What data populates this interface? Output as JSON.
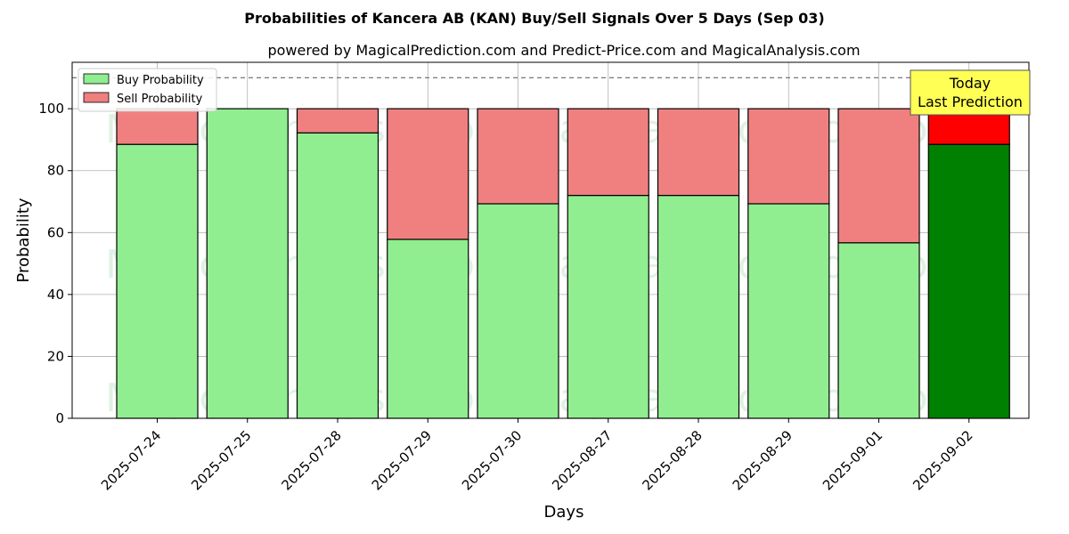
{
  "chart_data": {
    "type": "bar",
    "stacked": true,
    "title": "Probabilities of Kancera AB (KAN) Buy/Sell Signals Over 5 Days (Sep 03)",
    "subtitle": "powered by MagicalPrediction.com and Predict-Price.com and MagicalAnalysis.com",
    "xlabel": "Days",
    "ylabel": "Probability",
    "ylim": [
      0,
      115
    ],
    "yticks": [
      0,
      20,
      40,
      60,
      80,
      100
    ],
    "reference_line": 110,
    "grid": true,
    "legend_position": "top-left",
    "categories": [
      "2025-07-24",
      "2025-07-25",
      "2025-07-28",
      "2025-07-29",
      "2025-07-30",
      "2025-08-27",
      "2025-08-28",
      "2025-08-29",
      "2025-09-01",
      "2025-09-02"
    ],
    "series": [
      {
        "name": "Buy Probability",
        "values": [
          88.5,
          100,
          92.2,
          57.8,
          69.3,
          72,
          72,
          69.3,
          56.7,
          88.5
        ]
      },
      {
        "name": "Sell Probability",
        "values": [
          11.5,
          0,
          7.8,
          42.2,
          30.7,
          28,
          28,
          30.7,
          43.3,
          11.5
        ]
      }
    ],
    "colors": {
      "buy": "#90ee90",
      "sell": "#f08080",
      "buy_highlight": "#008000",
      "sell_highlight": "#ff0000",
      "annotation_bg": "#ffff55"
    },
    "annotation": {
      "line1": "Today",
      "line2": "Last Prediction"
    },
    "watermarks": [
      "MagicalAnalysis.com",
      "MagicalPrediction.com"
    ]
  }
}
